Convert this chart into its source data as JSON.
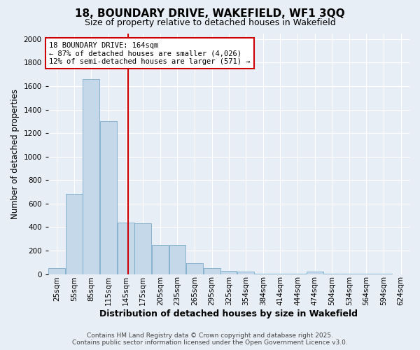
{
  "title": "18, BOUNDARY DRIVE, WAKEFIELD, WF1 3QQ",
  "subtitle": "Size of property relative to detached houses in Wakefield",
  "xlabel": "Distribution of detached houses by size in Wakefield",
  "ylabel": "Number of detached properties",
  "annotation_title": "18 BOUNDARY DRIVE: 164sqm",
  "annotation_line1": "← 87% of detached houses are smaller (4,026)",
  "annotation_line2": "12% of semi-detached houses are larger (571) →",
  "property_size": 164,
  "categories": [
    "25sqm",
    "55sqm",
    "85sqm",
    "115sqm",
    "145sqm",
    "175sqm",
    "205sqm",
    "235sqm",
    "265sqm",
    "295sqm",
    "325sqm",
    "354sqm",
    "384sqm",
    "414sqm",
    "444sqm",
    "474sqm",
    "504sqm",
    "534sqm",
    "564sqm",
    "594sqm",
    "624sqm"
  ],
  "bin_edges": [
    25,
    55,
    85,
    115,
    145,
    175,
    205,
    235,
    265,
    295,
    325,
    354,
    384,
    414,
    444,
    474,
    504,
    534,
    564,
    594,
    624,
    654
  ],
  "values": [
    50,
    680,
    1660,
    1300,
    440,
    430,
    250,
    250,
    90,
    50,
    30,
    20,
    5,
    5,
    3,
    20,
    3,
    2,
    1,
    1,
    0
  ],
  "bar_color": "#c5d8ea",
  "bar_edge_color": "#7aaac8",
  "vline_color": "#cc0000",
  "vline_x": 164,
  "annotation_box_color": "#ffffff",
  "annotation_box_edge": "#cc0000",
  "background_color": "#e8eef5",
  "grid_color": "#ffffff",
  "ylim": [
    0,
    2050
  ],
  "yticks": [
    0,
    200,
    400,
    600,
    800,
    1000,
    1200,
    1400,
    1600,
    1800,
    2000
  ],
  "footer_line1": "Contains HM Land Registry data © Crown copyright and database right 2025.",
  "footer_line2": "Contains public sector information licensed under the Open Government Licence v3.0.",
  "title_fontsize": 11,
  "subtitle_fontsize": 9,
  "axis_label_fontsize": 8.5,
  "tick_fontsize": 7.5,
  "annotation_fontsize": 7.5,
  "footer_fontsize": 6.5
}
